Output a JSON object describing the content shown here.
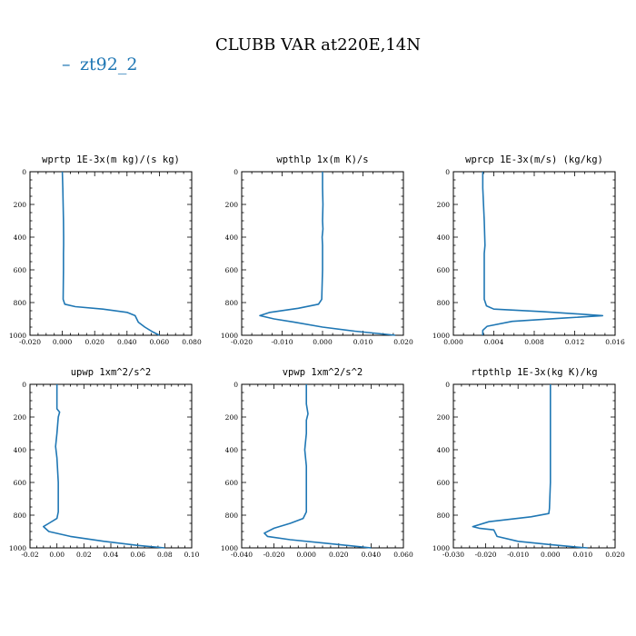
{
  "figure": {
    "title": "CLUBB VAR at220E,14N",
    "legend": {
      "label": "zt92_2",
      "color": "#1f77b4"
    }
  },
  "chart_data": [
    {
      "type": "line",
      "title": "wprtp  1E-3x(m kg)/(s kg)",
      "xlim": [
        -0.02,
        0.08
      ],
      "ylim": [
        1000,
        0
      ],
      "xticks": [
        "-0.020",
        "0.000",
        "0.020",
        "0.040",
        "0.060",
        "0.080"
      ],
      "yticks": [
        "0",
        "200",
        "400",
        "600",
        "800",
        "1000"
      ],
      "series": [
        {
          "color": "#1f77b4",
          "x": [
            0.0,
            0.0003,
            0.0005,
            0.0007,
            0.0008,
            0.0008,
            0.0007,
            0.0007,
            0.0005,
            0.0015,
            0.008,
            0.025,
            0.04,
            0.045,
            0.047,
            0.051,
            0.056,
            0.06
          ],
          "y": [
            0,
            100,
            200,
            300,
            400,
            450,
            500,
            600,
            780,
            810,
            825,
            840,
            860,
            880,
            920,
            950,
            980,
            1000
          ]
        }
      ]
    },
    {
      "type": "line",
      "title": "wpthlp  1x(m K)/s",
      "xlim": [
        -0.02,
        0.02
      ],
      "ylim": [
        1000,
        0
      ],
      "xticks": [
        "-0.020",
        "-0.010",
        "0.000",
        "0.010",
        "0.020"
      ],
      "yticks": [
        "0",
        "200",
        "400",
        "600",
        "800",
        "1000"
      ],
      "series": [
        {
          "color": "#1f77b4",
          "x": [
            0.0,
            0.0,
            0.0001,
            0.0,
            0.0001,
            -0.0001,
            0.0,
            0.0,
            -0.0002,
            -0.001,
            -0.006,
            -0.013,
            -0.0155,
            -0.012,
            -0.007,
            0.0,
            0.008,
            0.018
          ],
          "y": [
            0,
            100,
            200,
            300,
            350,
            400,
            450,
            600,
            780,
            810,
            835,
            860,
            880,
            900,
            920,
            950,
            975,
            1000
          ]
        }
      ]
    },
    {
      "type": "line",
      "title": "wprcp  1E-3x(m/s) (kg/kg)",
      "xlim": [
        -0.004,
        0.018
      ],
      "ylim": [
        1000,
        0
      ],
      "xticks": [
        "0.000",
        "0.004",
        "0.008",
        "0.012",
        "0.016"
      ],
      "yticks": [
        "0",
        "200",
        "400",
        "600",
        "800",
        "1000"
      ],
      "series": [
        {
          "color": "#1f77b4",
          "x": [
            0.0,
            0.0,
            0.0001,
            0.0002,
            0.0003,
            0.0002,
            0.0002,
            0.0002,
            0.0005,
            0.0015,
            0.008,
            0.013,
            0.0163,
            0.011,
            0.004,
            0.0006,
            0.0,
            0.0
          ],
          "y": [
            0,
            100,
            200,
            300,
            450,
            500,
            600,
            780,
            820,
            840,
            855,
            870,
            880,
            895,
            915,
            945,
            970,
            1000
          ]
        }
      ]
    },
    {
      "type": "line",
      "title": "upwp  1xm^2/s^2",
      "xlim": [
        -0.02,
        0.1
      ],
      "ylim": [
        1000,
        0
      ],
      "xticks": [
        "-0.02",
        "0.00",
        "0.02",
        "0.04",
        "0.06",
        "0.08",
        "0.10"
      ],
      "yticks": [
        "0",
        "200",
        "400",
        "600",
        "800",
        "1000"
      ],
      "series": [
        {
          "color": "#1f77b4",
          "x": [
            0.0,
            0.0,
            0.002,
            0.001,
            0.0,
            -0.001,
            0.0,
            0.001,
            0.001,
            0.0,
            -0.006,
            -0.01,
            -0.006,
            0.01,
            0.035,
            0.06,
            0.08
          ],
          "y": [
            0,
            150,
            170,
            200,
            300,
            380,
            450,
            600,
            780,
            820,
            850,
            870,
            900,
            930,
            960,
            985,
            1000
          ]
        }
      ]
    },
    {
      "type": "line",
      "title": "vpwp  1xm^2/s^2",
      "xlim": [
        -0.04,
        0.06
      ],
      "ylim": [
        1000,
        0
      ],
      "xticks": [
        "-0.040",
        "-0.020",
        "0.000",
        "0.020",
        "0.040",
        "0.060"
      ],
      "yticks": [
        "0",
        "200",
        "400",
        "600",
        "800",
        "1000"
      ],
      "series": [
        {
          "color": "#1f77b4",
          "x": [
            0.0,
            0.0,
            0.001,
            0.0,
            0.0,
            -0.001,
            0.0,
            0.0,
            -0.002,
            -0.01,
            -0.02,
            -0.026,
            -0.024,
            -0.01,
            0.01,
            0.03,
            0.04
          ],
          "y": [
            0,
            120,
            180,
            220,
            300,
            400,
            500,
            780,
            820,
            850,
            880,
            910,
            930,
            950,
            970,
            990,
            1000
          ]
        }
      ]
    },
    {
      "type": "line",
      "title": "rtpthlp  1E-3x(kg K)/kg",
      "xlim": [
        -0.03,
        0.02
      ],
      "ylim": [
        1000,
        0
      ],
      "xticks": [
        "-0.030",
        "-0.020",
        "-0.010",
        "0.000",
        "0.010",
        "0.020"
      ],
      "yticks": [
        "0",
        "200",
        "400",
        "600",
        "800",
        "1000"
      ],
      "series": [
        {
          "color": "#1f77b4",
          "x": [
            0.0,
            0.0,
            0.0,
            0.0,
            -0.0003,
            -0.0005,
            -0.006,
            -0.019,
            -0.024,
            -0.022,
            -0.0175,
            -0.0165,
            -0.01,
            0.0,
            0.008,
            0.0115
          ],
          "y": [
            0,
            200,
            400,
            600,
            760,
            790,
            810,
            840,
            870,
            880,
            890,
            930,
            960,
            980,
            995,
            1000
          ]
        }
      ]
    }
  ]
}
